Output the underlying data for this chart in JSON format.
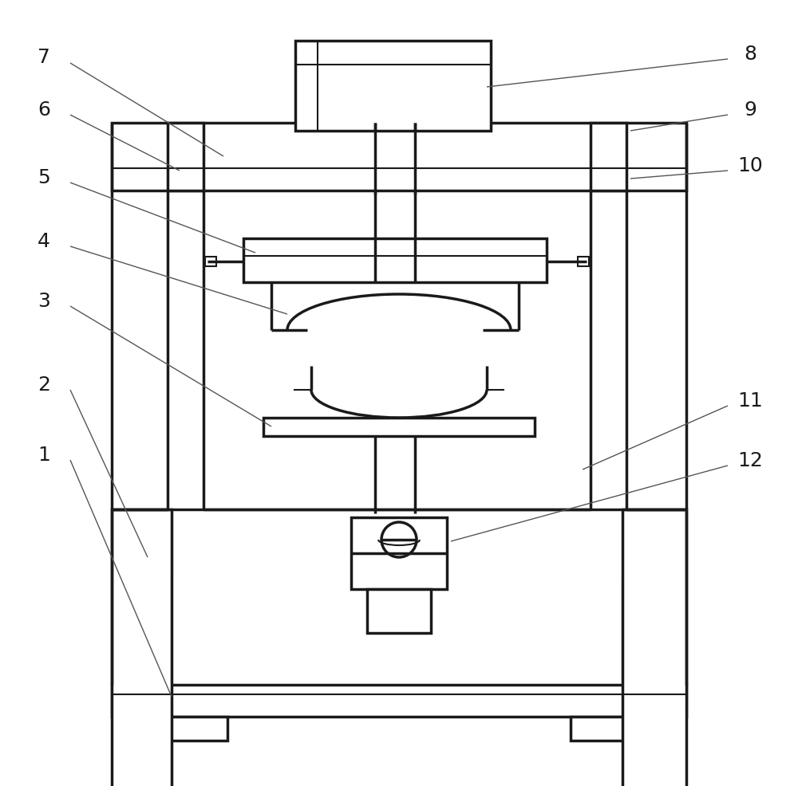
{
  "bg": "#ffffff",
  "lc": "#1a1a1a",
  "lw": 2.5,
  "tlw": 1.5,
  "alw": 1.0,
  "fs": 18,
  "fig_w": 10.0,
  "fig_h": 9.87
}
